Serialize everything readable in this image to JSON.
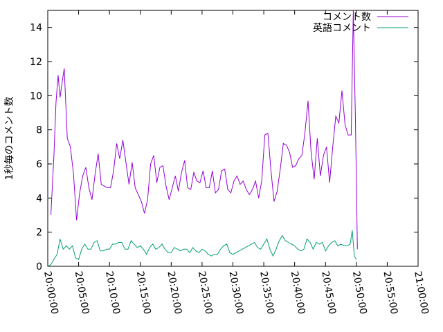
{
  "chart_data": {
    "type": "line",
    "ylabel": "1秒毎のコメント数",
    "xlabel": "",
    "ylim": [
      0,
      15
    ],
    "yticks": [
      0,
      2,
      4,
      6,
      8,
      10,
      12,
      14
    ],
    "xlim": [
      "20:00:00",
      "21:00:00"
    ],
    "xticks": [
      "20:00:00",
      "20:05:00",
      "20:10:00",
      "20:15:00",
      "20:20:00",
      "20:25:00",
      "20:30:00",
      "20:35:00",
      "20:40:00",
      "20:45:00",
      "20:50:00",
      "20:55:00",
      "21:00:00"
    ],
    "legend_position": "top-right",
    "grid": false,
    "series": [
      {
        "name": "コメント数",
        "color": "#9400d3",
        "points": [
          [
            "20:00:30",
            3.0
          ],
          [
            "20:01:00",
            6.5
          ],
          [
            "20:01:20",
            9.6
          ],
          [
            "20:01:40",
            11.2
          ],
          [
            "20:02:00",
            9.9
          ],
          [
            "20:02:20",
            10.8
          ],
          [
            "20:02:40",
            11.6
          ],
          [
            "20:03:10",
            7.5
          ],
          [
            "20:03:40",
            7.0
          ],
          [
            "20:04:10",
            5.4
          ],
          [
            "20:04:40",
            2.7
          ],
          [
            "20:05:10",
            4.3
          ],
          [
            "20:05:40",
            5.3
          ],
          [
            "20:06:10",
            5.8
          ],
          [
            "20:06:40",
            4.6
          ],
          [
            "20:07:10",
            3.9
          ],
          [
            "20:07:40",
            5.4
          ],
          [
            "20:08:10",
            6.6
          ],
          [
            "20:08:40",
            4.8
          ],
          [
            "20:09:10",
            4.7
          ],
          [
            "20:09:40",
            4.6
          ],
          [
            "20:10:10",
            4.6
          ],
          [
            "20:10:40",
            5.6
          ],
          [
            "20:11:10",
            7.2
          ],
          [
            "20:11:40",
            6.3
          ],
          [
            "20:12:10",
            7.4
          ],
          [
            "20:12:40",
            6.1
          ],
          [
            "20:13:10",
            4.8
          ],
          [
            "20:13:40",
            6.1
          ],
          [
            "20:14:10",
            4.6
          ],
          [
            "20:14:40",
            4.2
          ],
          [
            "20:15:10",
            3.8
          ],
          [
            "20:15:40",
            3.1
          ],
          [
            "20:16:10",
            3.9
          ],
          [
            "20:16:40",
            6.0
          ],
          [
            "20:17:10",
            6.5
          ],
          [
            "20:17:40",
            4.9
          ],
          [
            "20:18:10",
            5.8
          ],
          [
            "20:18:40",
            5.9
          ],
          [
            "20:19:10",
            4.7
          ],
          [
            "20:19:40",
            3.9
          ],
          [
            "20:20:10",
            4.6
          ],
          [
            "20:20:40",
            5.3
          ],
          [
            "20:21:10",
            4.4
          ],
          [
            "20:21:40",
            5.5
          ],
          [
            "20:22:10",
            6.2
          ],
          [
            "20:22:40",
            4.6
          ],
          [
            "20:23:10",
            4.5
          ],
          [
            "20:23:40",
            5.5
          ],
          [
            "20:24:10",
            5.0
          ],
          [
            "20:24:40",
            4.9
          ],
          [
            "20:25:10",
            5.6
          ],
          [
            "20:25:40",
            4.6
          ],
          [
            "20:26:10",
            4.6
          ],
          [
            "20:26:40",
            5.6
          ],
          [
            "20:27:10",
            4.3
          ],
          [
            "20:27:40",
            4.5
          ],
          [
            "20:28:10",
            5.6
          ],
          [
            "20:28:40",
            5.7
          ],
          [
            "20:29:10",
            4.5
          ],
          [
            "20:29:40",
            4.3
          ],
          [
            "20:30:10",
            5.0
          ],
          [
            "20:30:40",
            5.3
          ],
          [
            "20:31:10",
            4.8
          ],
          [
            "20:31:40",
            5.0
          ],
          [
            "20:32:10",
            4.5
          ],
          [
            "20:32:40",
            4.2
          ],
          [
            "20:33:10",
            4.5
          ],
          [
            "20:33:40",
            5.0
          ],
          [
            "20:34:10",
            4.0
          ],
          [
            "20:34:40",
            5.0
          ],
          [
            "20:35:10",
            7.7
          ],
          [
            "20:35:40",
            7.8
          ],
          [
            "20:36:10",
            5.6
          ],
          [
            "20:36:40",
            3.8
          ],
          [
            "20:37:10",
            4.4
          ],
          [
            "20:37:40",
            5.7
          ],
          [
            "20:38:10",
            7.2
          ],
          [
            "20:38:40",
            7.1
          ],
          [
            "20:39:10",
            6.7
          ],
          [
            "20:39:40",
            5.8
          ],
          [
            "20:40:10",
            5.9
          ],
          [
            "20:40:40",
            6.3
          ],
          [
            "20:41:10",
            6.5
          ],
          [
            "20:41:40",
            7.8
          ],
          [
            "20:42:10",
            9.7
          ],
          [
            "20:42:40",
            6.7
          ],
          [
            "20:43:10",
            5.1
          ],
          [
            "20:43:40",
            7.5
          ],
          [
            "20:44:10",
            5.3
          ],
          [
            "20:44:40",
            6.5
          ],
          [
            "20:45:10",
            7.0
          ],
          [
            "20:45:40",
            4.9
          ],
          [
            "20:46:10",
            7.0
          ],
          [
            "20:46:40",
            8.8
          ],
          [
            "20:47:10",
            8.4
          ],
          [
            "20:47:40",
            10.3
          ],
          [
            "20:48:10",
            8.3
          ],
          [
            "20:48:40",
            7.7
          ],
          [
            "20:49:10",
            7.7
          ],
          [
            "20:49:30",
            15.0
          ],
          [
            "20:49:50",
            9.0
          ],
          [
            "20:50:00",
            5.2
          ],
          [
            "20:50:10",
            1.0
          ]
        ]
      },
      {
        "name": "英語コメント",
        "color": "#009e73",
        "points": [
          [
            "20:00:00",
            0.0
          ],
          [
            "20:00:30",
            0.1
          ],
          [
            "20:01:00",
            0.4
          ],
          [
            "20:01:30",
            0.7
          ],
          [
            "20:02:00",
            1.6
          ],
          [
            "20:02:30",
            1.0
          ],
          [
            "20:03:00",
            1.2
          ],
          [
            "20:03:30",
            1.0
          ],
          [
            "20:04:00",
            1.2
          ],
          [
            "20:04:30",
            0.5
          ],
          [
            "20:05:00",
            0.4
          ],
          [
            "20:05:30",
            1.0
          ],
          [
            "20:06:00",
            1.3
          ],
          [
            "20:06:30",
            1.0
          ],
          [
            "20:07:00",
            1.0
          ],
          [
            "20:07:30",
            1.4
          ],
          [
            "20:08:00",
            1.5
          ],
          [
            "20:08:30",
            0.9
          ],
          [
            "20:09:00",
            0.9
          ],
          [
            "20:09:30",
            1.0
          ],
          [
            "20:10:00",
            1.0
          ],
          [
            "20:10:30",
            1.3
          ],
          [
            "20:11:00",
            1.3
          ],
          [
            "20:11:30",
            1.4
          ],
          [
            "20:12:00",
            1.4
          ],
          [
            "20:12:30",
            1.0
          ],
          [
            "20:13:00",
            1.0
          ],
          [
            "20:13:30",
            1.5
          ],
          [
            "20:14:00",
            1.3
          ],
          [
            "20:14:30",
            1.1
          ],
          [
            "20:15:00",
            1.2
          ],
          [
            "20:15:30",
            1.0
          ],
          [
            "20:16:00",
            0.7
          ],
          [
            "20:16:30",
            1.1
          ],
          [
            "20:17:00",
            1.3
          ],
          [
            "20:17:30",
            1.0
          ],
          [
            "20:18:00",
            1.1
          ],
          [
            "20:18:30",
            1.3
          ],
          [
            "20:19:00",
            1.0
          ],
          [
            "20:19:30",
            0.8
          ],
          [
            "20:20:00",
            0.8
          ],
          [
            "20:20:30",
            1.1
          ],
          [
            "20:21:00",
            1.0
          ],
          [
            "20:21:30",
            0.9
          ],
          [
            "20:22:00",
            1.0
          ],
          [
            "20:22:30",
            1.0
          ],
          [
            "20:23:00",
            0.8
          ],
          [
            "20:23:30",
            1.1
          ],
          [
            "20:24:00",
            0.9
          ],
          [
            "20:24:30",
            0.8
          ],
          [
            "20:25:00",
            1.0
          ],
          [
            "20:25:30",
            0.9
          ],
          [
            "20:26:00",
            0.7
          ],
          [
            "20:26:30",
            0.6
          ],
          [
            "20:27:00",
            0.7
          ],
          [
            "20:27:30",
            0.7
          ],
          [
            "20:28:00",
            1.0
          ],
          [
            "20:28:30",
            1.2
          ],
          [
            "20:29:00",
            1.3
          ],
          [
            "20:29:30",
            0.8
          ],
          [
            "20:30:00",
            0.7
          ],
          [
            "20:30:30",
            0.8
          ],
          [
            "20:31:00",
            0.9
          ],
          [
            "20:31:30",
            1.0
          ],
          [
            "20:32:00",
            1.1
          ],
          [
            "20:32:30",
            1.2
          ],
          [
            "20:33:00",
            1.3
          ],
          [
            "20:33:30",
            1.4
          ],
          [
            "20:34:00",
            1.1
          ],
          [
            "20:34:30",
            1.0
          ],
          [
            "20:35:00",
            1.3
          ],
          [
            "20:35:30",
            1.6
          ],
          [
            "20:36:00",
            1.0
          ],
          [
            "20:36:30",
            0.6
          ],
          [
            "20:37:00",
            1.0
          ],
          [
            "20:37:30",
            1.5
          ],
          [
            "20:38:00",
            1.8
          ],
          [
            "20:38:30",
            1.5
          ],
          [
            "20:39:00",
            1.4
          ],
          [
            "20:39:30",
            1.3
          ],
          [
            "20:40:00",
            1.2
          ],
          [
            "20:40:30",
            1.0
          ],
          [
            "20:41:00",
            0.9
          ],
          [
            "20:41:30",
            1.0
          ],
          [
            "20:42:00",
            1.6
          ],
          [
            "20:42:30",
            1.4
          ],
          [
            "20:43:00",
            1.0
          ],
          [
            "20:43:30",
            1.4
          ],
          [
            "20:44:00",
            1.3
          ],
          [
            "20:44:30",
            1.4
          ],
          [
            "20:45:00",
            0.9
          ],
          [
            "20:45:30",
            1.2
          ],
          [
            "20:46:00",
            1.4
          ],
          [
            "20:46:30",
            1.5
          ],
          [
            "20:47:00",
            1.2
          ],
          [
            "20:47:30",
            1.3
          ],
          [
            "20:48:00",
            1.2
          ],
          [
            "20:48:30",
            1.2
          ],
          [
            "20:49:00",
            1.3
          ],
          [
            "20:49:20",
            2.1
          ],
          [
            "20:49:40",
            0.6
          ],
          [
            "20:50:00",
            0.4
          ]
        ]
      }
    ]
  }
}
